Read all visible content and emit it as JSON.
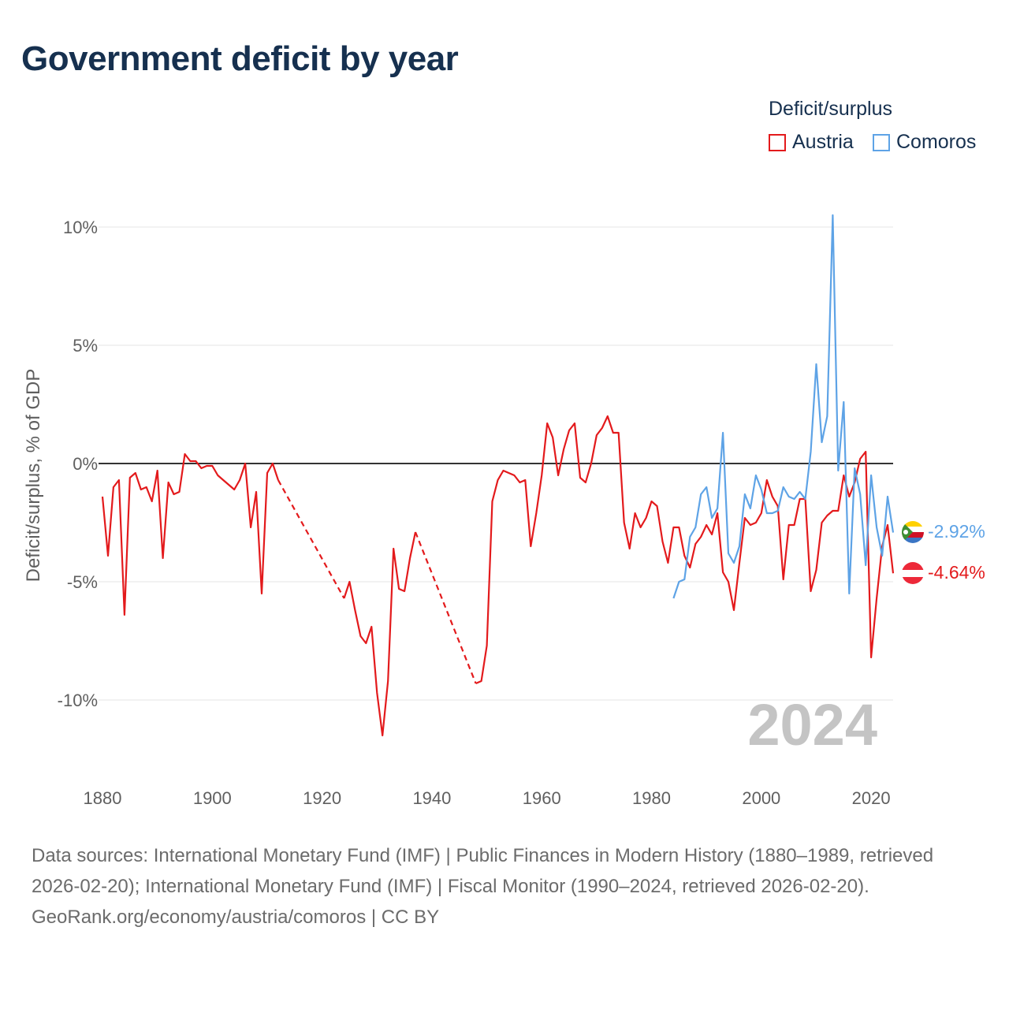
{
  "title": "Government deficit by year",
  "legend": {
    "title": "Deficit/surplus",
    "items": [
      {
        "label": "Austria",
        "color": "#e31a1c"
      },
      {
        "label": "Comoros",
        "color": "#5ea3e6"
      }
    ]
  },
  "year_label": "2024",
  "end_labels": {
    "comoros": "-2.92%",
    "austria": "-4.64%"
  },
  "footer": {
    "sources": "Data sources: International Monetary Fund (IMF) | Public Finances in Modern History (1880–1989, retrieved 2026-02-20); International Monetary Fund (IMF) | Fiscal Monitor (1990–2024, retrieved 2026-02-20).",
    "credit": "GeoRank.org/economy/austria/comoros | CC BY"
  },
  "chart_data": {
    "type": "line",
    "title": "Government deficit by year",
    "xlabel": "",
    "ylabel": "Deficit/surplus, % of GDP",
    "xlim": [
      1880,
      2024
    ],
    "ylim": [
      -12,
      11
    ],
    "x_ticks": [
      1880,
      1900,
      1920,
      1940,
      1960,
      1980,
      2000,
      2020
    ],
    "y_ticks": [
      {
        "value": 10,
        "label": "10%"
      },
      {
        "value": 5,
        "label": "5%"
      },
      {
        "value": 0,
        "label": "0%"
      },
      {
        "value": -5,
        "label": "-5%"
      },
      {
        "value": -10,
        "label": "-10%"
      }
    ],
    "series": [
      {
        "name": "Austria",
        "color": "#e31a1c",
        "segments": [
          {
            "style": "solid",
            "points": [
              [
                1880,
                -1.4
              ],
              [
                1881,
                -3.9
              ],
              [
                1882,
                -1.0
              ],
              [
                1883,
                -0.7
              ],
              [
                1884,
                -6.4
              ],
              [
                1885,
                -0.6
              ],
              [
                1886,
                -0.4
              ],
              [
                1887,
                -1.1
              ],
              [
                1888,
                -1.0
              ],
              [
                1889,
                -1.6
              ],
              [
                1890,
                -0.3
              ],
              [
                1891,
                -4.0
              ],
              [
                1892,
                -0.8
              ],
              [
                1893,
                -1.3
              ],
              [
                1894,
                -1.2
              ],
              [
                1895,
                0.4
              ],
              [
                1896,
                0.1
              ],
              [
                1897,
                0.1
              ],
              [
                1898,
                -0.2
              ],
              [
                1899,
                -0.1
              ],
              [
                1900,
                -0.1
              ],
              [
                1901,
                -0.5
              ],
              [
                1902,
                -0.7
              ],
              [
                1903,
                -0.9
              ],
              [
                1904,
                -1.1
              ],
              [
                1905,
                -0.7
              ],
              [
                1906,
                0.0
              ],
              [
                1907,
                -2.7
              ],
              [
                1908,
                -1.2
              ],
              [
                1909,
                -5.5
              ],
              [
                1910,
                -0.4
              ],
              [
                1911,
                0.0
              ],
              [
                1912,
                -0.7
              ]
            ]
          },
          {
            "style": "dashed",
            "points": [
              [
                1912,
                -0.7
              ],
              [
                1924,
                -5.7
              ]
            ]
          },
          {
            "style": "solid",
            "points": [
              [
                1924,
                -5.7
              ],
              [
                1925,
                -5.0
              ],
              [
                1926,
                -6.2
              ],
              [
                1927,
                -7.3
              ],
              [
                1928,
                -7.6
              ],
              [
                1929,
                -6.9
              ],
              [
                1930,
                -9.7
              ],
              [
                1931,
                -11.5
              ],
              [
                1932,
                -9.2
              ],
              [
                1933,
                -3.6
              ],
              [
                1934,
                -5.3
              ],
              [
                1935,
                -5.4
              ],
              [
                1936,
                -4.0
              ],
              [
                1937,
                -2.9
              ]
            ]
          },
          {
            "style": "dashed",
            "points": [
              [
                1937,
                -2.9
              ],
              [
                1948,
                -9.3
              ]
            ]
          },
          {
            "style": "solid",
            "points": [
              [
                1948,
                -9.3
              ],
              [
                1949,
                -9.2
              ],
              [
                1950,
                -7.7
              ],
              [
                1951,
                -1.6
              ],
              [
                1952,
                -0.7
              ],
              [
                1953,
                -0.3
              ],
              [
                1954,
                -0.4
              ],
              [
                1955,
                -0.5
              ],
              [
                1956,
                -0.8
              ],
              [
                1957,
                -0.7
              ],
              [
                1958,
                -3.5
              ],
              [
                1959,
                -2.1
              ],
              [
                1960,
                -0.5
              ],
              [
                1961,
                1.7
              ],
              [
                1962,
                1.1
              ],
              [
                1963,
                -0.5
              ],
              [
                1964,
                0.6
              ],
              [
                1965,
                1.4
              ],
              [
                1966,
                1.7
              ],
              [
                1967,
                -0.6
              ],
              [
                1968,
                -0.8
              ],
              [
                1969,
                0.0
              ],
              [
                1970,
                1.2
              ],
              [
                1971,
                1.5
              ],
              [
                1972,
                2.0
              ],
              [
                1973,
                1.3
              ],
              [
                1974,
                1.3
              ],
              [
                1975,
                -2.5
              ],
              [
                1976,
                -3.6
              ],
              [
                1977,
                -2.1
              ],
              [
                1978,
                -2.7
              ],
              [
                1979,
                -2.3
              ],
              [
                1980,
                -1.6
              ],
              [
                1981,
                -1.8
              ],
              [
                1982,
                -3.3
              ],
              [
                1983,
                -4.2
              ],
              [
                1984,
                -2.7
              ],
              [
                1985,
                -2.7
              ],
              [
                1986,
                -3.9
              ],
              [
                1987,
                -4.4
              ],
              [
                1988,
                -3.4
              ],
              [
                1989,
                -3.1
              ],
              [
                1990,
                -2.6
              ],
              [
                1991,
                -3.0
              ],
              [
                1992,
                -2.1
              ],
              [
                1993,
                -4.6
              ],
              [
                1994,
                -5.0
              ],
              [
                1995,
                -6.2
              ],
              [
                1996,
                -4.2
              ],
              [
                1997,
                -2.3
              ],
              [
                1998,
                -2.6
              ],
              [
                1999,
                -2.5
              ],
              [
                2000,
                -2.1
              ],
              [
                2001,
                -0.7
              ],
              [
                2002,
                -1.4
              ],
              [
                2003,
                -1.8
              ],
              [
                2004,
                -4.9
              ],
              [
                2005,
                -2.6
              ],
              [
                2006,
                -2.6
              ],
              [
                2007,
                -1.5
              ],
              [
                2008,
                -1.5
              ],
              [
                2009,
                -5.4
              ],
              [
                2010,
                -4.5
              ],
              [
                2011,
                -2.5
              ],
              [
                2012,
                -2.2
              ],
              [
                2013,
                -2.0
              ],
              [
                2014,
                -2.0
              ],
              [
                2015,
                -0.5
              ],
              [
                2016,
                -1.4
              ],
              [
                2017,
                -0.8
              ],
              [
                2018,
                0.2
              ],
              [
                2019,
                0.5
              ],
              [
                2020,
                -8.2
              ],
              [
                2021,
                -5.7
              ],
              [
                2022,
                -3.5
              ],
              [
                2023,
                -2.6
              ],
              [
                2024,
                -4.64
              ]
            ]
          }
        ]
      },
      {
        "name": "Comoros",
        "color": "#5ea3e6",
        "segments": [
          {
            "style": "solid",
            "points": [
              [
                1984,
                -5.7
              ],
              [
                1985,
                -5.0
              ],
              [
                1986,
                -4.9
              ],
              [
                1987,
                -3.1
              ],
              [
                1988,
                -2.7
              ],
              [
                1989,
                -1.3
              ],
              [
                1990,
                -1.0
              ],
              [
                1991,
                -2.3
              ],
              [
                1992,
                -1.9
              ],
              [
                1993,
                1.3
              ],
              [
                1994,
                -3.8
              ],
              [
                1995,
                -4.2
              ],
              [
                1996,
                -3.5
              ],
              [
                1997,
                -1.3
              ],
              [
                1998,
                -1.9
              ],
              [
                1999,
                -0.5
              ],
              [
                2000,
                -1.1
              ],
              [
                2001,
                -2.1
              ],
              [
                2002,
                -2.1
              ],
              [
                2003,
                -2.0
              ],
              [
                2004,
                -1.0
              ],
              [
                2005,
                -1.4
              ],
              [
                2006,
                -1.5
              ],
              [
                2007,
                -1.2
              ],
              [
                2008,
                -1.5
              ],
              [
                2009,
                0.5
              ],
              [
                2010,
                4.2
              ],
              [
                2011,
                0.9
              ],
              [
                2012,
                2.0
              ],
              [
                2013,
                10.5
              ],
              [
                2014,
                -0.3
              ],
              [
                2015,
                2.6
              ],
              [
                2016,
                -5.5
              ],
              [
                2017,
                -0.2
              ],
              [
                2018,
                -1.3
              ],
              [
                2019,
                -4.3
              ],
              [
                2020,
                -0.5
              ],
              [
                2021,
                -2.7
              ],
              [
                2022,
                -3.9
              ],
              [
                2023,
                -1.4
              ],
              [
                2024,
                -2.92
              ]
            ]
          }
        ]
      }
    ]
  }
}
